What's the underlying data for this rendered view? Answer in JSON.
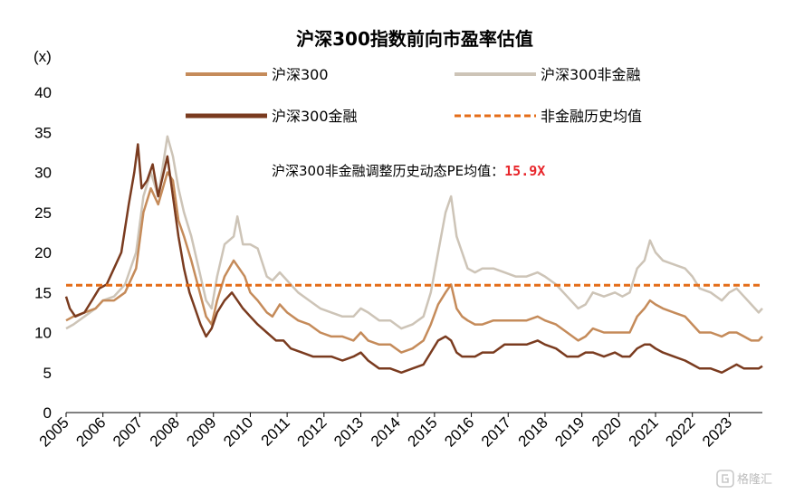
{
  "chart_data": {
    "type": "line",
    "title": "沪深300指数前向市盈率估值",
    "ylabel": "(x)",
    "xlabel": "",
    "ylim": [
      0,
      40
    ],
    "yticks": [
      0,
      5,
      10,
      15,
      20,
      25,
      30,
      35,
      40
    ],
    "xlim": [
      2005,
      2023.9
    ],
    "xticks": [
      "2005",
      "2006",
      "2007",
      "2008",
      "2009",
      "2010",
      "2011",
      "2012",
      "2013",
      "2014",
      "2015",
      "2016",
      "2017",
      "2018",
      "2019",
      "2020",
      "2021",
      "2022",
      "2023"
    ],
    "grid": false,
    "legend_position": "top",
    "series": [
      {
        "name": "沪深300非金融",
        "color": "#cdc4b7",
        "points": [
          [
            2005.0,
            10.5
          ],
          [
            2005.2,
            11.0
          ],
          [
            2005.5,
            12.0
          ],
          [
            2005.8,
            13.0
          ],
          [
            2006.0,
            14.0
          ],
          [
            2006.3,
            14.5
          ],
          [
            2006.6,
            16.0
          ],
          [
            2006.9,
            20.0
          ],
          [
            2007.1,
            27.0
          ],
          [
            2007.3,
            30.0
          ],
          [
            2007.5,
            27.0
          ],
          [
            2007.75,
            34.5
          ],
          [
            2007.9,
            32.0
          ],
          [
            2008.05,
            28.0
          ],
          [
            2008.2,
            25.0
          ],
          [
            2008.4,
            22.0
          ],
          [
            2008.6,
            18.0
          ],
          [
            2008.8,
            14.0
          ],
          [
            2008.95,
            13.0
          ],
          [
            2009.1,
            17.0
          ],
          [
            2009.3,
            21.0
          ],
          [
            2009.55,
            22.0
          ],
          [
            2009.65,
            24.5
          ],
          [
            2009.8,
            21.0
          ],
          [
            2010.0,
            21.0
          ],
          [
            2010.2,
            20.5
          ],
          [
            2010.45,
            17.0
          ],
          [
            2010.6,
            16.5
          ],
          [
            2010.8,
            17.5
          ],
          [
            2011.0,
            16.5
          ],
          [
            2011.3,
            15.0
          ],
          [
            2011.6,
            14.0
          ],
          [
            2011.9,
            13.0
          ],
          [
            2012.2,
            12.5
          ],
          [
            2012.5,
            12.0
          ],
          [
            2012.8,
            12.0
          ],
          [
            2013.0,
            13.0
          ],
          [
            2013.2,
            12.5
          ],
          [
            2013.5,
            11.5
          ],
          [
            2013.8,
            11.5
          ],
          [
            2014.1,
            10.5
          ],
          [
            2014.4,
            11.0
          ],
          [
            2014.7,
            12.0
          ],
          [
            2014.9,
            15.0
          ],
          [
            2015.1,
            20.0
          ],
          [
            2015.3,
            25.0
          ],
          [
            2015.45,
            27.0
          ],
          [
            2015.6,
            22.0
          ],
          [
            2015.75,
            20.0
          ],
          [
            2015.9,
            18.0
          ],
          [
            2016.1,
            17.5
          ],
          [
            2016.3,
            18.0
          ],
          [
            2016.6,
            18.0
          ],
          [
            2016.9,
            17.5
          ],
          [
            2017.2,
            17.0
          ],
          [
            2017.5,
            17.0
          ],
          [
            2017.8,
            17.5
          ],
          [
            2018.0,
            17.0
          ],
          [
            2018.3,
            16.0
          ],
          [
            2018.6,
            14.5
          ],
          [
            2018.9,
            13.0
          ],
          [
            2019.1,
            13.5
          ],
          [
            2019.3,
            15.0
          ],
          [
            2019.6,
            14.5
          ],
          [
            2019.9,
            15.0
          ],
          [
            2020.1,
            14.5
          ],
          [
            2020.3,
            15.0
          ],
          [
            2020.5,
            18.0
          ],
          [
            2020.7,
            19.0
          ],
          [
            2020.85,
            21.5
          ],
          [
            2021.0,
            20.0
          ],
          [
            2021.2,
            19.0
          ],
          [
            2021.5,
            18.5
          ],
          [
            2021.8,
            18.0
          ],
          [
            2022.0,
            17.0
          ],
          [
            2022.2,
            15.5
          ],
          [
            2022.5,
            15.0
          ],
          [
            2022.8,
            14.0
          ],
          [
            2023.0,
            15.0
          ],
          [
            2023.2,
            15.5
          ],
          [
            2023.4,
            14.5
          ],
          [
            2023.6,
            13.5
          ],
          [
            2023.8,
            12.5
          ],
          [
            2023.9,
            13.0
          ]
        ]
      },
      {
        "name": "沪深300",
        "color": "#c58b5a",
        "points": [
          [
            2005.0,
            11.5
          ],
          [
            2005.2,
            12.0
          ],
          [
            2005.5,
            12.5
          ],
          [
            2005.8,
            13.0
          ],
          [
            2006.0,
            14.0
          ],
          [
            2006.3,
            14.0
          ],
          [
            2006.6,
            15.0
          ],
          [
            2006.9,
            18.0
          ],
          [
            2007.1,
            25.0
          ],
          [
            2007.3,
            28.0
          ],
          [
            2007.5,
            26.0
          ],
          [
            2007.75,
            30.0
          ],
          [
            2007.9,
            29.0
          ],
          [
            2008.05,
            24.0
          ],
          [
            2008.2,
            22.0
          ],
          [
            2008.4,
            19.0
          ],
          [
            2008.6,
            15.5
          ],
          [
            2008.8,
            12.0
          ],
          [
            2008.95,
            11.0
          ],
          [
            2009.1,
            14.0
          ],
          [
            2009.3,
            17.0
          ],
          [
            2009.55,
            19.0
          ],
          [
            2009.7,
            18.0
          ],
          [
            2009.85,
            17.0
          ],
          [
            2010.0,
            15.0
          ],
          [
            2010.2,
            14.0
          ],
          [
            2010.45,
            12.5
          ],
          [
            2010.6,
            12.0
          ],
          [
            2010.8,
            13.5
          ],
          [
            2011.0,
            12.5
          ],
          [
            2011.3,
            11.5
          ],
          [
            2011.6,
            11.0
          ],
          [
            2011.9,
            10.0
          ],
          [
            2012.2,
            9.5
          ],
          [
            2012.5,
            9.5
          ],
          [
            2012.8,
            9.0
          ],
          [
            2013.0,
            10.0
          ],
          [
            2013.2,
            9.0
          ],
          [
            2013.5,
            8.5
          ],
          [
            2013.8,
            8.5
          ],
          [
            2014.1,
            7.5
          ],
          [
            2014.4,
            8.0
          ],
          [
            2014.7,
            9.0
          ],
          [
            2014.9,
            11.0
          ],
          [
            2015.1,
            13.5
          ],
          [
            2015.3,
            15.0
          ],
          [
            2015.45,
            16.0
          ],
          [
            2015.6,
            13.0
          ],
          [
            2015.75,
            12.0
          ],
          [
            2015.9,
            11.5
          ],
          [
            2016.1,
            11.0
          ],
          [
            2016.3,
            11.0
          ],
          [
            2016.6,
            11.5
          ],
          [
            2016.9,
            11.5
          ],
          [
            2017.2,
            11.5
          ],
          [
            2017.5,
            11.5
          ],
          [
            2017.8,
            12.0
          ],
          [
            2018.0,
            11.5
          ],
          [
            2018.3,
            11.0
          ],
          [
            2018.6,
            10.0
          ],
          [
            2018.9,
            9.0
          ],
          [
            2019.1,
            9.5
          ],
          [
            2019.3,
            10.5
          ],
          [
            2019.6,
            10.0
          ],
          [
            2019.9,
            10.0
          ],
          [
            2020.1,
            10.0
          ],
          [
            2020.3,
            10.0
          ],
          [
            2020.5,
            12.0
          ],
          [
            2020.7,
            13.0
          ],
          [
            2020.85,
            14.0
          ],
          [
            2021.0,
            13.5
          ],
          [
            2021.2,
            13.0
          ],
          [
            2021.5,
            12.5
          ],
          [
            2021.8,
            12.0
          ],
          [
            2022.0,
            11.0
          ],
          [
            2022.2,
            10.0
          ],
          [
            2022.5,
            10.0
          ],
          [
            2022.8,
            9.5
          ],
          [
            2023.0,
            10.0
          ],
          [
            2023.2,
            10.0
          ],
          [
            2023.4,
            9.5
          ],
          [
            2023.6,
            9.0
          ],
          [
            2023.8,
            9.0
          ],
          [
            2023.9,
            9.5
          ]
        ]
      },
      {
        "name": "沪深300金融",
        "color": "#7a3b1f",
        "points": [
          [
            2005.0,
            14.5
          ],
          [
            2005.1,
            13.0
          ],
          [
            2005.25,
            12.0
          ],
          [
            2005.5,
            12.5
          ],
          [
            2005.7,
            14.0
          ],
          [
            2005.9,
            15.5
          ],
          [
            2006.1,
            16.0
          ],
          [
            2006.3,
            18.0
          ],
          [
            2006.5,
            20.0
          ],
          [
            2006.7,
            26.0
          ],
          [
            2006.85,
            30.0
          ],
          [
            2006.95,
            33.5
          ],
          [
            2007.05,
            28.0
          ],
          [
            2007.2,
            29.0
          ],
          [
            2007.35,
            31.0
          ],
          [
            2007.5,
            27.0
          ],
          [
            2007.65,
            30.0
          ],
          [
            2007.75,
            32.0
          ],
          [
            2007.9,
            27.0
          ],
          [
            2008.05,
            22.0
          ],
          [
            2008.2,
            18.0
          ],
          [
            2008.35,
            15.0
          ],
          [
            2008.5,
            13.0
          ],
          [
            2008.65,
            11.0
          ],
          [
            2008.8,
            9.5
          ],
          [
            2008.95,
            10.5
          ],
          [
            2009.1,
            12.5
          ],
          [
            2009.3,
            14.0
          ],
          [
            2009.5,
            15.0
          ],
          [
            2009.65,
            14.0
          ],
          [
            2009.8,
            13.0
          ],
          [
            2010.0,
            12.0
          ],
          [
            2010.2,
            11.0
          ],
          [
            2010.45,
            10.0
          ],
          [
            2010.7,
            9.0
          ],
          [
            2010.9,
            9.0
          ],
          [
            2011.1,
            8.0
          ],
          [
            2011.4,
            7.5
          ],
          [
            2011.7,
            7.0
          ],
          [
            2011.9,
            7.0
          ],
          [
            2012.2,
            7.0
          ],
          [
            2012.5,
            6.5
          ],
          [
            2012.8,
            7.0
          ],
          [
            2013.0,
            7.5
          ],
          [
            2013.2,
            6.5
          ],
          [
            2013.5,
            5.5
          ],
          [
            2013.8,
            5.5
          ],
          [
            2014.1,
            5.0
          ],
          [
            2014.4,
            5.5
          ],
          [
            2014.7,
            6.0
          ],
          [
            2014.9,
            7.5
          ],
          [
            2015.1,
            9.0
          ],
          [
            2015.3,
            9.5
          ],
          [
            2015.45,
            9.0
          ],
          [
            2015.6,
            7.5
          ],
          [
            2015.75,
            7.0
          ],
          [
            2015.9,
            7.0
          ],
          [
            2016.1,
            7.0
          ],
          [
            2016.3,
            7.5
          ],
          [
            2016.6,
            7.5
          ],
          [
            2016.9,
            8.5
          ],
          [
            2017.2,
            8.5
          ],
          [
            2017.5,
            8.5
          ],
          [
            2017.8,
            9.0
          ],
          [
            2018.0,
            8.5
          ],
          [
            2018.3,
            8.0
          ],
          [
            2018.6,
            7.0
          ],
          [
            2018.9,
            7.0
          ],
          [
            2019.1,
            7.5
          ],
          [
            2019.3,
            7.5
          ],
          [
            2019.6,
            7.0
          ],
          [
            2019.9,
            7.5
          ],
          [
            2020.1,
            7.0
          ],
          [
            2020.3,
            7.0
          ],
          [
            2020.5,
            8.0
          ],
          [
            2020.7,
            8.5
          ],
          [
            2020.85,
            8.5
          ],
          [
            2021.0,
            8.0
          ],
          [
            2021.2,
            7.5
          ],
          [
            2021.5,
            7.0
          ],
          [
            2021.8,
            6.5
          ],
          [
            2022.0,
            6.0
          ],
          [
            2022.2,
            5.5
          ],
          [
            2022.5,
            5.5
          ],
          [
            2022.8,
            5.0
          ],
          [
            2023.0,
            5.5
          ],
          [
            2023.2,
            6.0
          ],
          [
            2023.4,
            5.5
          ],
          [
            2023.6,
            5.5
          ],
          [
            2023.8,
            5.5
          ],
          [
            2023.9,
            5.8
          ]
        ]
      },
      {
        "name": "非金融历史均值",
        "color": "#e46d19",
        "dashed": true,
        "points": [
          [
            2005.0,
            15.9
          ],
          [
            2023.9,
            15.9
          ]
        ]
      }
    ],
    "legend": [
      "沪深300",
      "沪深300非金融",
      "沪深300金融",
      "非金融历史均值"
    ],
    "annotation": {
      "text": "沪深300非金融调整历史动态PE均值：",
      "value": "15.9X",
      "value_color": "#e8262b"
    }
  },
  "watermark": "格隆汇"
}
